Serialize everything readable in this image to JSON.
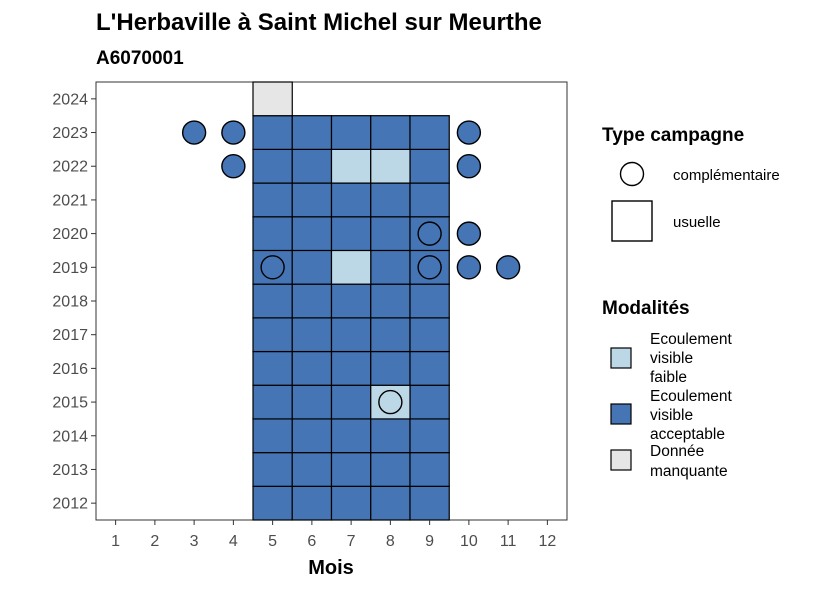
{
  "chart_data": {
    "type": "heatmap",
    "title": "L'Herbaville à Saint Michel sur Meurthe",
    "subtitle": "A6070001",
    "xlabel": "Mois",
    "ylabel": "",
    "x_ticks": [
      "1",
      "2",
      "3",
      "4",
      "5",
      "6",
      "7",
      "8",
      "9",
      "10",
      "11",
      "12"
    ],
    "y_ticks": [
      "2012",
      "2013",
      "2014",
      "2015",
      "2016",
      "2017",
      "2018",
      "2019",
      "2020",
      "2021",
      "2022",
      "2023",
      "2024"
    ],
    "xlim": [
      0.5,
      12.5
    ],
    "ylim": [
      2011.5,
      2024.5
    ],
    "colors": {
      "faible": "#bcd8e6",
      "acceptable": "#4575b4",
      "manquante": "#e6e6e6",
      "border": "#000000"
    },
    "usuelle_cells": [
      {
        "year": 2012,
        "months": [
          5,
          6,
          7,
          8,
          9
        ],
        "modalite": "acceptable"
      },
      {
        "year": 2013,
        "months": [
          5,
          6,
          7,
          8,
          9
        ],
        "modalite": "acceptable"
      },
      {
        "year": 2014,
        "months": [
          5,
          6,
          7,
          8,
          9
        ],
        "modalite": "acceptable"
      },
      {
        "year": 2015,
        "months": [
          5,
          6,
          7,
          9
        ],
        "modalite": "acceptable"
      },
      {
        "year": 2015,
        "months": [
          8
        ],
        "modalite": "faible"
      },
      {
        "year": 2016,
        "months": [
          5,
          6,
          7,
          8,
          9
        ],
        "modalite": "acceptable"
      },
      {
        "year": 2017,
        "months": [
          5,
          6,
          7,
          8,
          9
        ],
        "modalite": "acceptable"
      },
      {
        "year": 2018,
        "months": [
          5,
          6,
          7,
          8,
          9
        ],
        "modalite": "acceptable"
      },
      {
        "year": 2019,
        "months": [
          5,
          6,
          8,
          9
        ],
        "modalite": "acceptable"
      },
      {
        "year": 2019,
        "months": [
          7
        ],
        "modalite": "faible"
      },
      {
        "year": 2020,
        "months": [
          5,
          6,
          7,
          8,
          9
        ],
        "modalite": "acceptable"
      },
      {
        "year": 2021,
        "months": [
          5,
          6,
          7,
          8,
          9
        ],
        "modalite": "acceptable"
      },
      {
        "year": 2022,
        "months": [
          5,
          6,
          9
        ],
        "modalite": "acceptable"
      },
      {
        "year": 2022,
        "months": [
          7,
          8
        ],
        "modalite": "faible"
      },
      {
        "year": 2023,
        "months": [
          5,
          6,
          7,
          8,
          9
        ],
        "modalite": "acceptable"
      },
      {
        "year": 2024,
        "months": [
          5
        ],
        "modalite": "manquante"
      }
    ],
    "complementaire_points": [
      {
        "year": 2023,
        "month": 3,
        "modalite": "acceptable"
      },
      {
        "year": 2023,
        "month": 4,
        "modalite": "acceptable"
      },
      {
        "year": 2023,
        "month": 10,
        "modalite": "acceptable"
      },
      {
        "year": 2022,
        "month": 4,
        "modalite": "acceptable"
      },
      {
        "year": 2022,
        "month": 10,
        "modalite": "acceptable"
      },
      {
        "year": 2020,
        "month": 9,
        "modalite": "acceptable"
      },
      {
        "year": 2020,
        "month": 10,
        "modalite": "acceptable"
      },
      {
        "year": 2019,
        "month": 5,
        "modalite": "acceptable"
      },
      {
        "year": 2019,
        "month": 9,
        "modalite": "acceptable"
      },
      {
        "year": 2019,
        "month": 10,
        "modalite": "acceptable"
      },
      {
        "year": 2019,
        "month": 11,
        "modalite": "acceptable"
      },
      {
        "year": 2015,
        "month": 8,
        "modalite": "faible"
      }
    ],
    "legend": {
      "position": "right",
      "type_title": "Type campagne",
      "type_items": [
        {
          "shape": "circle",
          "label": "complémentaire"
        },
        {
          "shape": "square",
          "label": "usuelle"
        }
      ],
      "modalites_title": "Modalités",
      "modalites_items": [
        {
          "key": "faible",
          "lines": [
            "Ecoulement",
            "visible",
            "faible"
          ]
        },
        {
          "key": "acceptable",
          "lines": [
            "Ecoulement",
            "visible",
            "acceptable"
          ]
        },
        {
          "key": "manquante",
          "lines": [
            "Donnée",
            "manquante"
          ]
        }
      ]
    }
  }
}
